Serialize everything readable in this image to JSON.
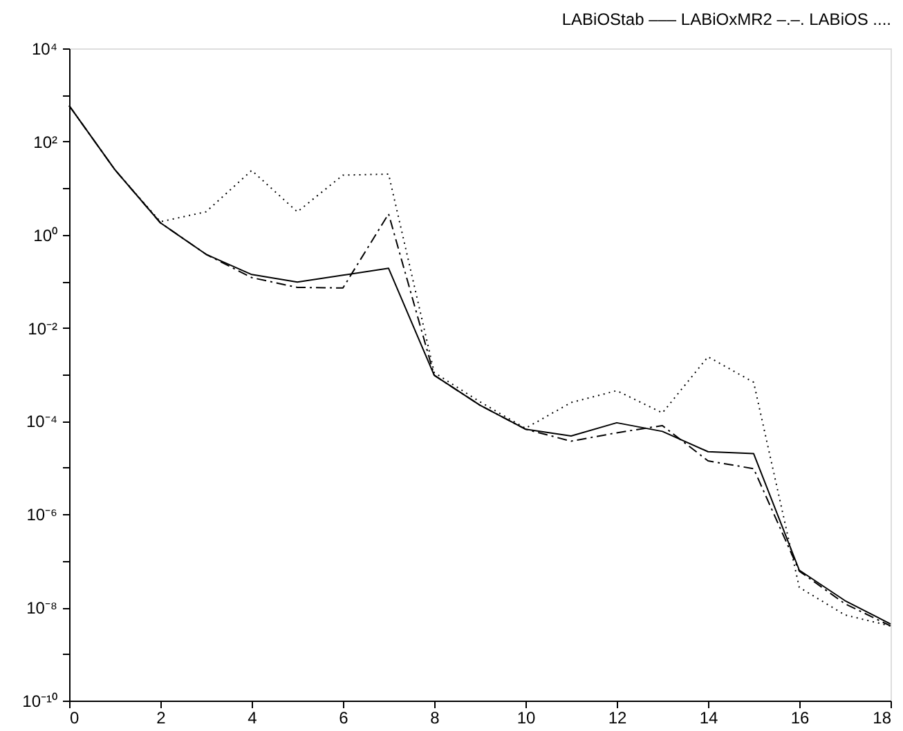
{
  "chart_data": {
    "type": "line",
    "title": "LABiOStab –––  LABiOxMR2 –.–.   LABiOS ....",
    "x": [
      0,
      1,
      2,
      3,
      4,
      5,
      6,
      7,
      8,
      9,
      10,
      11,
      12,
      13,
      14,
      15,
      16,
      17,
      18
    ],
    "series": [
      {
        "color": "#000000",
        "line_style": "solid",
        "values": [
          590,
          25,
          1.8,
          0.38,
          0.14,
          0.096,
          0.135,
          0.19,
          0.00096,
          0.00022,
          6.7e-05,
          4.8e-05,
          9.2e-05,
          6e-05,
          2.2e-05,
          2e-05,
          6.3e-08,
          1.4e-08,
          4.4e-09
        ]
      },
      {
        "color": "#000000",
        "line_style": "dashed",
        "values": [
          590,
          25,
          1.8,
          0.38,
          0.12,
          0.074,
          0.072,
          2.8,
          0.00096,
          0.00022,
          6.7e-05,
          3.7e-05,
          5.6e-05,
          8e-05,
          1.4e-05,
          9.5e-06,
          6e-08,
          1.2e-08,
          4e-09
        ]
      },
      {
        "color": "#000000",
        "line_style": "dotted",
        "values": [
          590,
          25,
          1.9,
          3.1,
          24,
          3.1,
          19,
          20,
          0.0011,
          0.00026,
          7e-05,
          0.00025,
          0.00045,
          0.00015,
          0.0024,
          0.00068,
          2.7e-08,
          6.9e-09,
          4e-09
        ]
      }
    ],
    "log": "y",
    "grid": false,
    "marker": "none",
    "xlim": [
      0,
      18
    ],
    "xticks": [
      0,
      2,
      4,
      6,
      8,
      10,
      12,
      14,
      16,
      18
    ],
    "ylim": [
      1e-10,
      10000
    ],
    "yticks": [
      {
        "value": 1e-10,
        "label": "10⁻¹⁰"
      },
      {
        "value": 1e-09,
        "label": null
      },
      {
        "value": 1e-08,
        "label": "10⁻⁸"
      },
      {
        "value": 1e-07,
        "label": null
      },
      {
        "value": 1e-06,
        "label": "10⁻⁶"
      },
      {
        "value": 1e-05,
        "label": null
      },
      {
        "value": 0.0001,
        "label": "10⁻⁴"
      },
      {
        "value": 0.001,
        "label": null
      },
      {
        "value": 0.01,
        "label": "10⁻²"
      },
      {
        "value": 0.1,
        "label": null
      },
      {
        "value": 1,
        "label": "10⁰"
      },
      {
        "value": 10,
        "label": null
      },
      {
        "value": 100,
        "label": "10²"
      },
      {
        "value": 1000,
        "label": null
      },
      {
        "value": 10000,
        "label": "10⁴"
      }
    ]
  }
}
